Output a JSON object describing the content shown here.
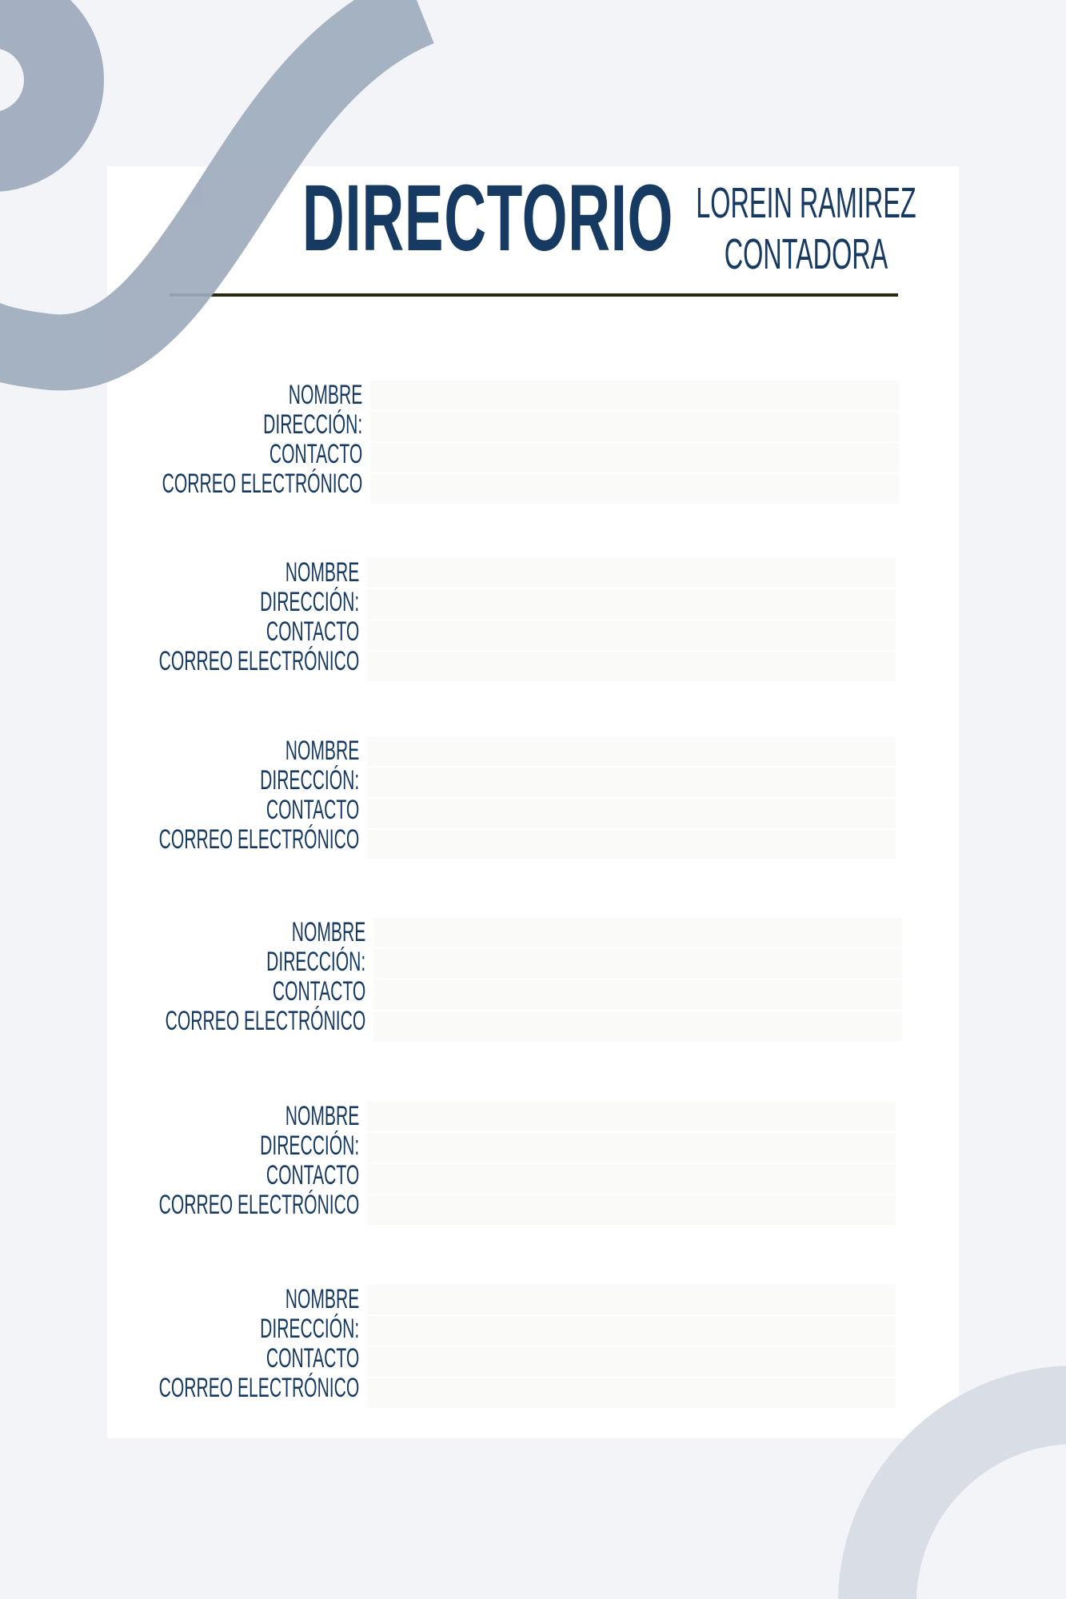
{
  "header": {
    "title": "DIRECTORIO",
    "owner_name": "LOREIN RAMIREZ",
    "owner_role": "CONTADORA"
  },
  "labels": {
    "name": "NOMBRE",
    "address": "DIRECCIÓN:",
    "contact": "CONTACTO",
    "email": "CORREO ELECTRÓNICO"
  },
  "entries": [
    {
      "name": "",
      "address": "",
      "contact": "",
      "email": ""
    },
    {
      "name": "",
      "address": "",
      "contact": "",
      "email": ""
    },
    {
      "name": "",
      "address": "",
      "contact": "",
      "email": ""
    },
    {
      "name": "",
      "address": "",
      "contact": "",
      "email": ""
    },
    {
      "name": "",
      "address": "",
      "contact": "",
      "email": ""
    },
    {
      "name": "",
      "address": "",
      "contact": "",
      "email": ""
    }
  ],
  "colors": {
    "text": "#173a63",
    "background": "#f3f4f8",
    "shape_dark": "#9eabbd",
    "shape_light": "#d8dde6",
    "rule": "#2a2a12"
  }
}
